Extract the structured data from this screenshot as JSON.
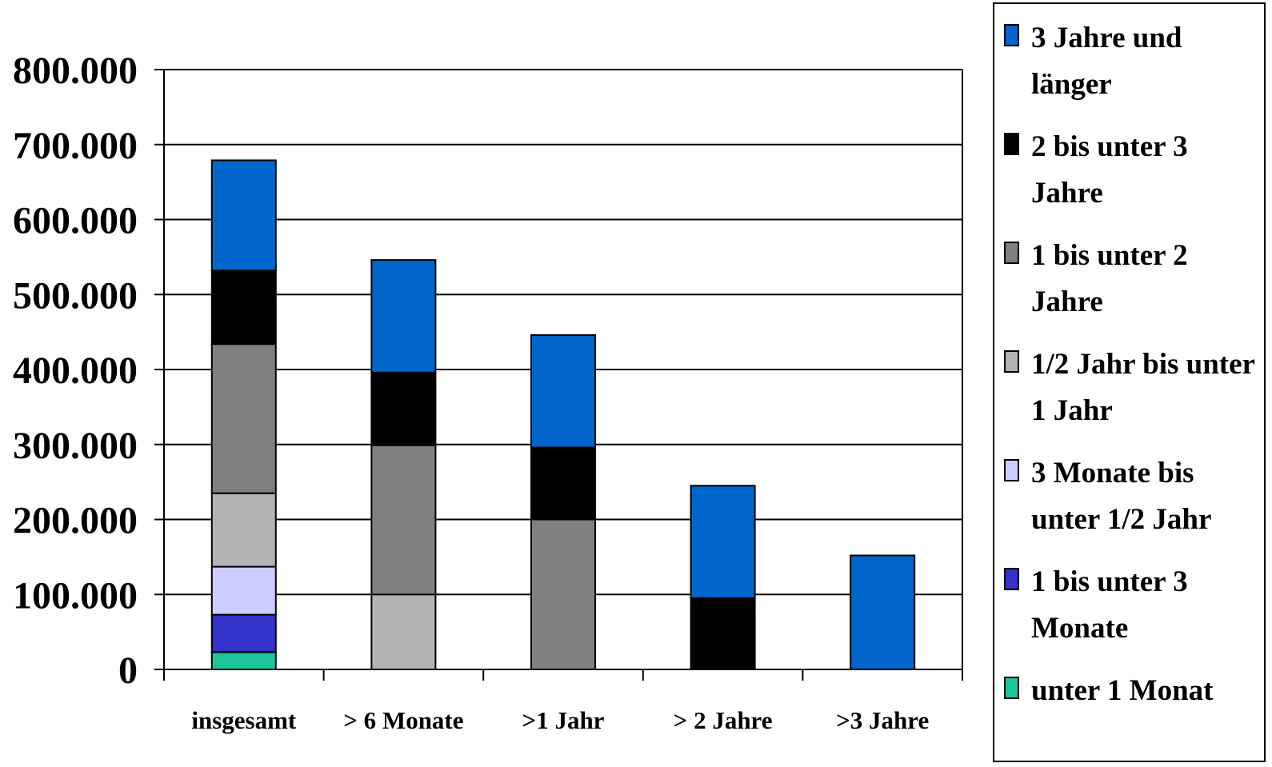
{
  "chart_data": {
    "type": "bar",
    "stacked": true,
    "categories": [
      "insgesamt",
      "> 6 Monate",
      ">1 Jahr",
      "> 2 Jahre",
      ">3 Jahre"
    ],
    "y_tick_labels": [
      "0",
      "100.000",
      "200.000",
      "300.000",
      "400.000",
      "500.000",
      "600.000",
      "700.000",
      "800.000"
    ],
    "ylim": [
      0,
      800000
    ],
    "ystep": 100000,
    "grid": true,
    "legend_position": "right",
    "series": [
      {
        "name": "unter 1 Monat",
        "color": "#1ac79a",
        "values": [
          23000,
          0,
          0,
          0,
          0
        ]
      },
      {
        "name": "1 bis unter 3 Monate",
        "color": "#3333cc",
        "values": [
          50000,
          0,
          0,
          0,
          0
        ]
      },
      {
        "name": "3 Monate bis unter 1/2 Jahr",
        "color": "#ccccff",
        "values": [
          64000,
          0,
          0,
          0,
          0
        ]
      },
      {
        "name": "1/2 Jahr bis unter 1 Jahr",
        "color": "#b3b3b3",
        "values": [
          98000,
          100000,
          0,
          0,
          0
        ]
      },
      {
        "name": "1 bis unter 2 Jahre",
        "color": "#808080",
        "values": [
          199000,
          199000,
          200000,
          0,
          0
        ]
      },
      {
        "name": "2 bis unter 3 Jahre",
        "color": "#000000",
        "values": [
          98000,
          97000,
          96000,
          95000,
          0
        ]
      },
      {
        "name": "3 Jahre und länger",
        "color": "#0066cc",
        "values": [
          147000,
          150000,
          150000,
          150000,
          152000
        ]
      }
    ]
  },
  "legend": {
    "items": [
      {
        "label_lines": [
          "3 Jahre und",
          "länger"
        ],
        "color": "#0066cc"
      },
      {
        "label_lines": [
          "2 bis unter 3",
          "Jahre"
        ],
        "color": "#000000"
      },
      {
        "label_lines": [
          "1 bis unter 2",
          "Jahre"
        ],
        "color": "#808080"
      },
      {
        "label_lines": [
          "1/2 Jahr bis unter",
          "1 Jahr"
        ],
        "color": "#b3b3b3"
      },
      {
        "label_lines": [
          "3 Monate bis",
          "unter 1/2 Jahr"
        ],
        "color": "#ccccff"
      },
      {
        "label_lines": [
          "1 bis unter 3",
          "Monate"
        ],
        "color": "#3333cc"
      },
      {
        "label_lines": [
          "unter 1 Monat"
        ],
        "color": "#1ac79a"
      }
    ]
  }
}
